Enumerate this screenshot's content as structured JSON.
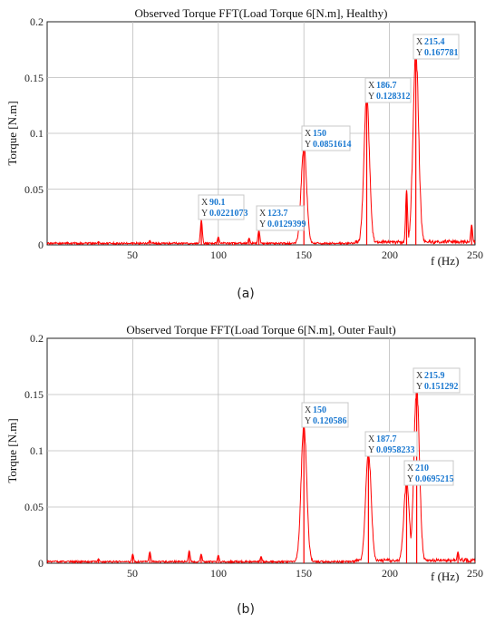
{
  "chart_data": [
    {
      "type": "line",
      "title": "Observed Torque FFT(Load Torque 6[N.m], Healthy)",
      "xlabel": "f (Hz)",
      "ylabel": "Torque [N.m]",
      "xlim": [
        0,
        250
      ],
      "ylim": [
        0,
        0.2
      ],
      "xticks": [
        "50",
        "100",
        "150",
        "200",
        "250"
      ],
      "yticks": [
        "0",
        "0.05",
        "0.1",
        "0.15",
        "0.2"
      ],
      "grid": true,
      "color": "#ff0000",
      "caption": "(a)",
      "series": [
        {
          "peaks": [
            {
              "x": 30,
              "y": 0.003
            },
            {
              "x": 50,
              "y": 0.002
            },
            {
              "x": 60,
              "y": 0.004
            },
            {
              "x": 90.1,
              "y": 0.0221073
            },
            {
              "x": 100,
              "y": 0.007
            },
            {
              "x": 118,
              "y": 0.006
            },
            {
              "x": 123.7,
              "y": 0.0129399
            },
            {
              "x": 150,
              "y": 0.0851614
            },
            {
              "x": 186.7,
              "y": 0.128312
            },
            {
              "x": 210,
              "y": 0.049
            },
            {
              "x": 215.4,
              "y": 0.167781
            },
            {
              "x": 248,
              "y": 0.018
            }
          ]
        }
      ],
      "datatips": [
        {
          "x_label": "X",
          "y_label": "Y",
          "x": "90.1",
          "y": "0.0221073"
        },
        {
          "x_label": "X",
          "y_label": "Y",
          "x": "123.7",
          "y": "0.0129399"
        },
        {
          "x_label": "X",
          "y_label": "Y",
          "x": "150",
          "y": "0.0851614"
        },
        {
          "x_label": "X",
          "y_label": "Y",
          "x": "186.7",
          "y": "0.128312"
        },
        {
          "x_label": "X",
          "y_label": "Y",
          "x": "215.4",
          "y": "0.167781"
        }
      ]
    },
    {
      "type": "line",
      "title": "Observed Torque FFT(Load Torque 6[N.m], Outer Fault)",
      "xlabel": "f (Hz)",
      "ylabel": "Torque [N.m]",
      "xlim": [
        0,
        250
      ],
      "ylim": [
        0,
        0.2
      ],
      "xticks": [
        "50",
        "100",
        "150",
        "200",
        "250"
      ],
      "yticks": [
        "0",
        "0.05",
        "0.1",
        "0.15",
        "0.2"
      ],
      "grid": true,
      "color": "#ff0000",
      "caption": "(b)",
      "series": [
        {
          "peaks": [
            {
              "x": 30,
              "y": 0.004
            },
            {
              "x": 50,
              "y": 0.008
            },
            {
              "x": 60,
              "y": 0.01
            },
            {
              "x": 83,
              "y": 0.011
            },
            {
              "x": 90,
              "y": 0.008
            },
            {
              "x": 100,
              "y": 0.007
            },
            {
              "x": 125,
              "y": 0.006
            },
            {
              "x": 150,
              "y": 0.120586
            },
            {
              "x": 187.7,
              "y": 0.0958233
            },
            {
              "x": 210,
              "y": 0.0695215
            },
            {
              "x": 215.9,
              "y": 0.151292
            },
            {
              "x": 240,
              "y": 0.01
            }
          ]
        }
      ],
      "datatips": [
        {
          "x_label": "X",
          "y_label": "Y",
          "x": "150",
          "y": "0.120586"
        },
        {
          "x_label": "X",
          "y_label": "Y",
          "x": "187.7",
          "y": "0.0958233"
        },
        {
          "x_label": "X",
          "y_label": "Y",
          "x": "210",
          "y": "0.0695215"
        },
        {
          "x_label": "X",
          "y_label": "Y",
          "x": "215.9",
          "y": "0.151292"
        }
      ]
    }
  ]
}
